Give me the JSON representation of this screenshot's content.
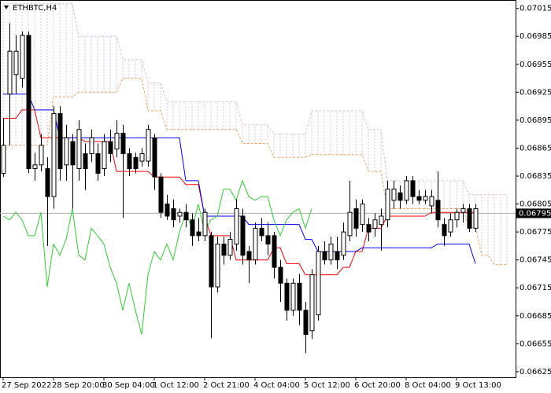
{
  "chart_data": {
    "type": "candlestick",
    "title": "ETHBTC,H4",
    "categories": [
      "27 Sep 2022",
      null,
      null,
      null,
      null,
      null,
      null,
      null,
      "28 Sep 20:00",
      null,
      null,
      null,
      null,
      null,
      null,
      null,
      "30 Sep 04:00",
      null,
      null,
      null,
      null,
      null,
      null,
      null,
      "1 Oct 12:00",
      null,
      null,
      null,
      null,
      null,
      null,
      null,
      "2 Oct 21:00",
      null,
      null,
      null,
      null,
      null,
      null,
      null,
      "4 Oct 04:00",
      null,
      null,
      null,
      null,
      null,
      null,
      null,
      "5 Oct 12:00",
      null,
      null,
      null,
      null,
      null,
      null,
      null,
      "6 Oct 20:00",
      null,
      null,
      null,
      null,
      null,
      null,
      null,
      "8 Oct 04:00",
      null,
      null,
      null,
      null,
      null,
      null,
      null,
      "9 Oct 13:00",
      null,
      null,
      null,
      null,
      null,
      null,
      null,
      null
    ],
    "open": [
      0.06838,
      0.06923,
      0.06944,
      0.0694,
      0.06986,
      0.06843,
      0.06847,
      0.06843,
      0.06813,
      0.06902,
      0.06847,
      0.06872,
      0.06843,
      0.06859,
      0.06859,
      0.06859,
      0.06843,
      0.06872,
      0.06864,
      0.06881,
      0.06859,
      0.06855,
      0.06851,
      0.06851,
      0.06876,
      0.06834,
      0.06805,
      0.068,
      0.06792,
      0.06796,
      0.06788,
      0.06775,
      0.06771,
      0.06771,
      0.06716,
      0.06762,
      0.0675,
      0.06762,
      0.06792,
      0.06754,
      0.06745,
      0.06779,
      0.06771,
      0.06771,
      0.06737,
      0.0672,
      0.06691,
      0.0672,
      0.06691,
      0.06669,
      0.06686,
      0.06754,
      0.06745,
      0.06754,
      0.0675,
      0.06771,
      0.068,
      0.06783,
      0.06783,
      0.06779,
      0.06783,
      0.06788,
      0.06809,
      0.06817,
      0.06809,
      0.0683,
      0.06813,
      0.06809,
      0.06803,
      0.06809,
      0.06783,
      0.06775,
      0.06788,
      0.06796,
      0.068,
      0.06779,
      null,
      null,
      null,
      null,
      null
    ],
    "high": [
      0.06897,
      0.06999,
      0.06986,
      0.0699,
      0.0699,
      0.0686,
      0.0688,
      0.06855,
      0.0691,
      0.0691,
      0.0689,
      0.0688,
      0.06895,
      0.0687,
      0.06885,
      0.0687,
      0.0688,
      0.06885,
      0.06895,
      0.0689,
      0.06865,
      0.0686,
      0.06865,
      0.0689,
      0.0688,
      0.06838,
      0.06815,
      0.0681,
      0.068,
      0.06805,
      0.06795,
      0.0679,
      0.068,
      0.06775,
      0.0677,
      0.0677,
      0.06775,
      0.0681,
      0.068,
      0.0676,
      0.06785,
      0.0679,
      0.06785,
      0.06775,
      0.06745,
      0.06725,
      0.06725,
      0.0673,
      0.067,
      0.06735,
      0.0676,
      0.06765,
      0.0677,
      0.0677,
      0.06785,
      0.0683,
      0.0681,
      0.0681,
      0.0679,
      0.06795,
      0.068,
      0.0683,
      0.0683,
      0.06825,
      0.06835,
      0.06835,
      0.0682,
      0.0682,
      0.0682,
      0.0684,
      0.0679,
      0.06795,
      0.068,
      0.06805,
      0.06805,
      0.06805,
      null,
      null,
      null,
      null,
      null
    ],
    "low": [
      0.06834,
      0.06868,
      0.06923,
      0.0693,
      0.06838,
      0.0683,
      0.0684,
      0.0676,
      0.068,
      0.0683,
      0.0683,
      0.068,
      0.0683,
      0.0682,
      0.0685,
      0.0683,
      0.06835,
      0.0685,
      0.06855,
      0.0679,
      0.06835,
      0.06838,
      0.06845,
      0.06845,
      0.0682,
      0.0679,
      0.06788,
      0.0678,
      0.06785,
      0.0678,
      0.0676,
      0.06765,
      0.06765,
      0.06661,
      0.0671,
      0.0674,
      0.06745,
      0.06755,
      0.0674,
      0.0672,
      0.0674,
      0.06765,
      0.0675,
      0.06725,
      0.067,
      0.0668,
      0.06685,
      0.06675,
      0.06645,
      0.0666,
      0.0668,
      0.0674,
      0.0674,
      0.06735,
      0.06745,
      0.06765,
      0.0677,
      0.06775,
      0.06765,
      0.0677,
      0.06755,
      0.0678,
      0.068,
      0.068,
      0.06805,
      0.06805,
      0.06805,
      0.06805,
      0.06795,
      0.0678,
      0.0676,
      0.0677,
      0.0678,
      0.06785,
      0.06775,
      0.06775,
      null,
      null,
      null,
      null,
      null
    ],
    "close": [
      0.06868,
      0.06969,
      0.06969,
      0.06986,
      0.06843,
      0.06847,
      0.06868,
      0.06813,
      0.06902,
      0.06843,
      0.06876,
      0.06847,
      0.06885,
      0.06843,
      0.06876,
      0.06838,
      0.06872,
      0.06859,
      0.06881,
      0.06859,
      0.06843,
      0.06843,
      0.06859,
      0.06885,
      0.06834,
      0.06796,
      0.06792,
      0.06788,
      0.06796,
      0.06788,
      0.06771,
      0.06771,
      0.06796,
      0.06716,
      0.06762,
      0.0675,
      0.06767,
      0.068,
      0.0675,
      0.06745,
      0.06779,
      0.06771,
      0.06762,
      0.06737,
      0.0672,
      0.06691,
      0.0672,
      0.06691,
      0.06665,
      0.06729,
      0.06754,
      0.06745,
      0.06762,
      0.06745,
      0.06775,
      0.06796,
      0.06779,
      0.06805,
      0.06775,
      0.06788,
      0.06792,
      0.06821,
      0.06821,
      0.06809,
      0.0683,
      0.06813,
      0.06809,
      0.06813,
      0.06813,
      0.06788,
      0.06771,
      0.06788,
      0.06796,
      0.068,
      0.06779,
      0.068,
      null,
      null,
      null,
      null,
      null
    ],
    "up_color": "#ffffff",
    "down_color": "#000000",
    "lines": [
      {
        "color": "#ff0000",
        "values": [
          0.06897,
          0.06897,
          0.06897,
          0.06906,
          0.06906,
          0.06906,
          0.06876,
          0.06876,
          0.06876,
          0.06876,
          0.06876,
          0.06876,
          0.06876,
          0.06872,
          0.06872,
          0.06872,
          0.06872,
          0.06872,
          0.0684,
          0.0684,
          0.0684,
          0.0684,
          0.0684,
          0.0684,
          0.06834,
          0.06834,
          0.06834,
          0.06834,
          0.06834,
          0.06826,
          0.06826,
          0.06826,
          0.06792,
          0.06771,
          0.06771,
          0.06771,
          0.06771,
          0.06745,
          0.06745,
          0.06745,
          0.06745,
          0.06745,
          0.06745,
          0.06758,
          0.06758,
          0.06741,
          0.06741,
          0.06741,
          0.06729,
          0.06729,
          0.06729,
          0.06729,
          0.06729,
          0.06729,
          0.06737,
          0.06737,
          0.06754,
          0.06754,
          0.06779,
          0.06779,
          0.06779,
          0.06792,
          0.06792,
          0.06792,
          0.06792,
          0.06792,
          0.06792,
          0.06792,
          0.06796,
          0.06796,
          0.06796,
          0.06796,
          0.06796,
          0.06796,
          0.06796,
          0.06796,
          null,
          null,
          null,
          null,
          null
        ]
      },
      {
        "color": "#0000ff",
        "values": [
          0.06923,
          0.06923,
          0.06923,
          0.06923,
          0.06923,
          0.06906,
          0.06906,
          0.06906,
          0.06906,
          0.06876,
          0.06876,
          0.06876,
          0.06876,
          0.06876,
          0.06876,
          0.06876,
          0.06876,
          0.06876,
          0.06876,
          0.06876,
          0.06876,
          0.06876,
          0.06876,
          0.06876,
          0.06876,
          0.06876,
          0.06876,
          0.06876,
          0.06876,
          0.0683,
          0.0683,
          0.0683,
          0.06792,
          0.06792,
          0.06792,
          0.06792,
          0.06792,
          0.06792,
          0.06792,
          0.06783,
          0.06783,
          0.06783,
          0.06783,
          0.06783,
          0.06783,
          0.06783,
          0.06783,
          0.06783,
          0.06767,
          0.06767,
          0.06754,
          0.06754,
          0.06754,
          0.06754,
          0.06754,
          0.06754,
          0.06754,
          0.06758,
          0.06758,
          0.06758,
          0.06758,
          0.06758,
          0.06758,
          0.06758,
          0.06758,
          0.06758,
          0.06758,
          0.06758,
          0.06758,
          0.06762,
          0.06762,
          0.06762,
          0.06762,
          0.06762,
          0.06762,
          0.06741,
          null,
          null,
          null,
          null,
          null
        ]
      },
      {
        "color": "#32cd32",
        "values": [
          0.06792,
          0.06788,
          0.06796,
          0.06788,
          0.06771,
          0.06771,
          0.06796,
          0.06716,
          0.06762,
          0.0675,
          0.06767,
          0.068,
          0.0675,
          0.06745,
          0.06779,
          0.06771,
          0.06762,
          0.06737,
          0.0672,
          0.06691,
          0.0672,
          0.06691,
          0.06665,
          0.06729,
          0.06754,
          0.06745,
          0.06762,
          0.06745,
          0.06775,
          0.06796,
          0.06779,
          0.06805,
          0.06775,
          0.06788,
          0.06792,
          0.06821,
          0.06821,
          0.06809,
          0.0683,
          0.06813,
          0.06809,
          0.06813,
          0.06813,
          0.06788,
          0.06771,
          0.06788,
          0.06796,
          0.068,
          0.06779,
          0.068,
          null,
          null,
          null,
          null,
          null,
          null,
          null,
          null,
          null,
          null,
          null,
          null,
          null,
          null,
          null,
          null,
          null,
          null,
          null,
          null,
          null,
          null,
          null,
          null,
          null,
          null,
          null,
          null,
          null,
          null,
          null
        ]
      }
    ],
    "cloud": {
      "span_a": [
        0.06868,
        0.06868,
        0.06868,
        0.06868,
        0.06868,
        0.06868,
        0.06868,
        0.06868,
        0.0692,
        0.0692,
        0.0692,
        0.0692,
        0.06925,
        0.06925,
        0.06925,
        0.06925,
        0.06925,
        0.06925,
        0.06925,
        0.0694,
        0.0694,
        0.0694,
        0.0694,
        0.06905,
        0.06905,
        0.06905,
        0.06885,
        0.06885,
        0.06885,
        0.06885,
        0.06885,
        0.06885,
        0.06885,
        0.06885,
        0.06885,
        0.06885,
        0.06885,
        0.06885,
        0.0687,
        0.0687,
        0.0687,
        0.0687,
        0.0687,
        0.06855,
        0.06855,
        0.06855,
        0.06855,
        0.06855,
        0.06855,
        0.06858,
        0.06858,
        0.06858,
        0.06858,
        0.06858,
        0.06858,
        0.06858,
        0.06858,
        0.06858,
        0.0684,
        0.0684,
        0.0684,
        0.068,
        0.068,
        0.068,
        0.068,
        0.068,
        0.068,
        0.068,
        0.068,
        0.068,
        0.068,
        0.068,
        0.068,
        0.068,
        0.0678,
        0.0678,
        0.0675,
        0.0675,
        0.0674,
        0.0674,
        0.0674
      ],
      "span_b": [
        0.0702,
        0.0702,
        0.0702,
        0.0702,
        0.0702,
        0.0702,
        0.0702,
        0.0702,
        0.0702,
        0.0702,
        0.0702,
        0.0702,
        0.06985,
        0.06985,
        0.06985,
        0.06985,
        0.06985,
        0.06985,
        0.06985,
        0.0696,
        0.0696,
        0.0696,
        0.0696,
        0.06935,
        0.06935,
        0.06935,
        0.06915,
        0.06915,
        0.06915,
        0.06915,
        0.06915,
        0.06915,
        0.06915,
        0.06915,
        0.06915,
        0.06915,
        0.06915,
        0.06915,
        0.0689,
        0.0689,
        0.0689,
        0.0689,
        0.0689,
        0.0688,
        0.0688,
        0.0688,
        0.0688,
        0.0688,
        0.0688,
        0.06905,
        0.06905,
        0.06905,
        0.06905,
        0.06905,
        0.06905,
        0.06905,
        0.06905,
        0.06905,
        0.06885,
        0.06885,
        0.06885,
        0.0683,
        0.0683,
        0.0683,
        0.0683,
        0.0683,
        0.0683,
        0.0683,
        0.0683,
        0.0683,
        0.0683,
        0.0683,
        0.0683,
        0.0683,
        0.06815,
        0.06815,
        0.06815,
        0.06815,
        0.06815,
        0.06815,
        0.06815
      ],
      "color_a": "#f4a460",
      "color_b": "#d8bfd8"
    },
    "current_price": 0.06795,
    "ylim": [
      0.06619,
      0.07024
    ],
    "yticks": [
      0.07015,
      0.06985,
      0.06955,
      0.06925,
      0.06895,
      0.06865,
      0.06835,
      0.06805,
      0.06775,
      0.06745,
      0.06715,
      0.06685,
      0.06655,
      0.06625
    ]
  }
}
